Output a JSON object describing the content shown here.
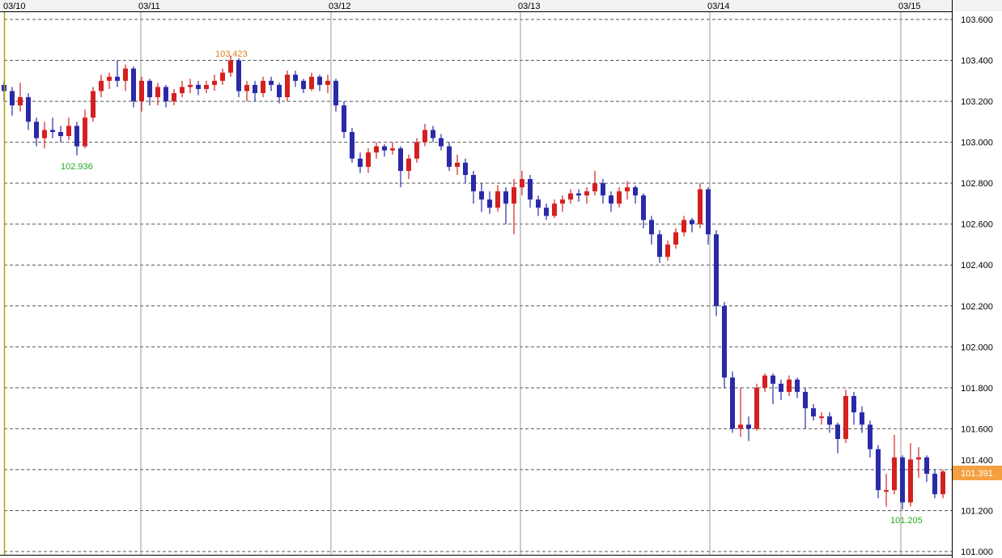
{
  "chart_data": {
    "type": "candlestick",
    "title": "",
    "x_tick_labels": [
      "03/10",
      "03/11",
      "03/12",
      "03/13",
      "03/14",
      "03/15"
    ],
    "y_tick_labels": [
      "103.600",
      "103.400",
      "103.200",
      "103.000",
      "102.800",
      "102.600",
      "102.400",
      "102.200",
      "102.000",
      "101.800",
      "101.600",
      "101.400",
      "101.200",
      "101.000"
    ],
    "ylim": [
      101.0,
      103.6
    ],
    "grid": true,
    "colors": {
      "up": "#d42020",
      "down": "#2a2aa8",
      "last_price_bg": "#f5a040",
      "high_label": "#e08020",
      "low_label": "#22aa22",
      "start_line": "#b8a000"
    },
    "last_price": "101.391",
    "annotations": [
      {
        "text": "103.423",
        "kind": "high"
      },
      {
        "text": "102.936",
        "kind": "low"
      },
      {
        "text": "101.205",
        "kind": "low"
      }
    ],
    "ohlc": [
      [
        103.28,
        103.3,
        103.2,
        103.25
      ],
      [
        103.25,
        103.27,
        103.13,
        103.18
      ],
      [
        103.18,
        103.29,
        103.15,
        103.22
      ],
      [
        103.22,
        103.24,
        103.06,
        103.1
      ],
      [
        103.1,
        103.12,
        102.98,
        103.02
      ],
      [
        103.02,
        103.1,
        102.97,
        103.06
      ],
      [
        103.06,
        103.12,
        103.02,
        103.05
      ],
      [
        103.05,
        103.08,
        103.0,
        103.03
      ],
      [
        103.03,
        103.12,
        103.01,
        103.08
      ],
      [
        103.08,
        103.1,
        102.936,
        102.98
      ],
      [
        102.98,
        103.16,
        102.97,
        103.12
      ],
      [
        103.12,
        103.27,
        103.1,
        103.25
      ],
      [
        103.25,
        103.33,
        103.22,
        103.3
      ],
      [
        103.3,
        103.34,
        103.26,
        103.32
      ],
      [
        103.32,
        103.4,
        103.27,
        103.3
      ],
      [
        103.3,
        103.38,
        103.25,
        103.36
      ],
      [
        103.36,
        103.37,
        103.17,
        103.2
      ],
      [
        103.2,
        103.32,
        103.15,
        103.3
      ],
      [
        103.3,
        103.31,
        103.18,
        103.22
      ],
      [
        103.22,
        103.29,
        103.18,
        103.27
      ],
      [
        103.27,
        103.28,
        103.17,
        103.2
      ],
      [
        103.2,
        103.26,
        103.18,
        103.24
      ],
      [
        103.24,
        103.3,
        103.22,
        103.27
      ],
      [
        103.27,
        103.31,
        103.24,
        103.28
      ],
      [
        103.28,
        103.3,
        103.23,
        103.26
      ],
      [
        103.26,
        103.3,
        103.24,
        103.28
      ],
      [
        103.28,
        103.33,
        103.25,
        103.3
      ],
      [
        103.3,
        103.36,
        103.28,
        103.34
      ],
      [
        103.34,
        103.423,
        103.32,
        103.4
      ],
      [
        103.4,
        103.41,
        103.22,
        103.25
      ],
      [
        103.25,
        103.3,
        103.2,
        103.28
      ],
      [
        103.28,
        103.3,
        103.2,
        103.24
      ],
      [
        103.24,
        103.32,
        103.22,
        103.3
      ],
      [
        103.3,
        103.32,
        103.25,
        103.28
      ],
      [
        103.28,
        103.29,
        103.19,
        103.22
      ],
      [
        103.22,
        103.35,
        103.2,
        103.33
      ],
      [
        103.33,
        103.35,
        103.27,
        103.3
      ],
      [
        103.3,
        103.31,
        103.24,
        103.26
      ],
      [
        103.26,
        103.34,
        103.25,
        103.32
      ],
      [
        103.32,
        103.33,
        103.25,
        103.28
      ],
      [
        103.28,
        103.33,
        103.24,
        103.3
      ],
      [
        103.3,
        103.31,
        103.15,
        103.18
      ],
      [
        103.18,
        103.2,
        103.02,
        103.05
      ],
      [
        103.05,
        103.07,
        102.9,
        102.92
      ],
      [
        102.92,
        102.95,
        102.85,
        102.88
      ],
      [
        102.88,
        102.97,
        102.85,
        102.95
      ],
      [
        102.95,
        103.0,
        102.92,
        102.98
      ],
      [
        102.98,
        102.99,
        102.93,
        102.96
      ],
      [
        102.96,
        103.0,
        102.94,
        102.97
      ],
      [
        102.97,
        102.98,
        102.78,
        102.86
      ],
      [
        102.86,
        102.94,
        102.82,
        102.92
      ],
      [
        102.92,
        103.02,
        102.9,
        103.0
      ],
      [
        103.0,
        103.09,
        102.98,
        103.06
      ],
      [
        103.06,
        103.08,
        103.0,
        103.02
      ],
      [
        103.02,
        103.04,
        102.96,
        102.98
      ],
      [
        102.98,
        103.0,
        102.86,
        102.88
      ],
      [
        102.88,
        102.94,
        102.84,
        102.9
      ],
      [
        102.9,
        102.92,
        102.8,
        102.84
      ],
      [
        102.84,
        102.86,
        102.7,
        102.76
      ],
      [
        102.76,
        102.8,
        102.66,
        102.72
      ],
      [
        102.72,
        102.76,
        102.65,
        102.68
      ],
      [
        102.68,
        102.79,
        102.66,
        102.76
      ],
      [
        102.76,
        102.78,
        102.6,
        102.7
      ],
      [
        102.7,
        102.82,
        102.55,
        102.78
      ],
      [
        102.78,
        102.86,
        102.74,
        102.82
      ],
      [
        102.82,
        102.84,
        102.68,
        102.72
      ],
      [
        102.72,
        102.74,
        102.64,
        102.68
      ],
      [
        102.68,
        102.7,
        102.62,
        102.64
      ],
      [
        102.64,
        102.72,
        102.63,
        102.7
      ],
      [
        102.7,
        102.74,
        102.66,
        102.72
      ],
      [
        102.72,
        102.77,
        102.7,
        102.75
      ],
      [
        102.75,
        102.77,
        102.71,
        102.74
      ],
      [
        102.74,
        102.78,
        102.7,
        102.76
      ],
      [
        102.76,
        102.86,
        102.74,
        102.8
      ],
      [
        102.8,
        102.82,
        102.7,
        102.74
      ],
      [
        102.74,
        102.76,
        102.66,
        102.7
      ],
      [
        102.7,
        102.78,
        102.68,
        102.76
      ],
      [
        102.76,
        102.81,
        102.72,
        102.78
      ],
      [
        102.78,
        102.79,
        102.7,
        102.74
      ],
      [
        102.74,
        102.75,
        102.58,
        102.62
      ],
      [
        102.62,
        102.64,
        102.5,
        102.55
      ],
      [
        102.55,
        102.57,
        102.41,
        102.44
      ],
      [
        102.44,
        102.52,
        102.42,
        102.5
      ],
      [
        102.5,
        102.58,
        102.48,
        102.56
      ],
      [
        102.56,
        102.64,
        102.54,
        102.62
      ],
      [
        102.62,
        102.63,
        102.56,
        102.6
      ],
      [
        102.6,
        102.8,
        102.58,
        102.77
      ],
      [
        102.77,
        102.78,
        102.5,
        102.55
      ],
      [
        102.55,
        102.57,
        102.15,
        102.2
      ],
      [
        102.2,
        102.22,
        101.8,
        101.85
      ],
      [
        101.85,
        101.88,
        101.58,
        101.6
      ],
      [
        101.6,
        101.8,
        101.56,
        101.62
      ],
      [
        101.62,
        101.66,
        101.54,
        101.6
      ],
      [
        101.6,
        101.82,
        101.59,
        101.8
      ],
      [
        101.8,
        101.87,
        101.78,
        101.86
      ],
      [
        101.86,
        101.87,
        101.72,
        101.82
      ],
      [
        101.82,
        101.84,
        101.74,
        101.78
      ],
      [
        101.78,
        101.86,
        101.76,
        101.84
      ],
      [
        101.84,
        101.85,
        101.75,
        101.78
      ],
      [
        101.78,
        101.8,
        101.6,
        101.7
      ],
      [
        101.7,
        101.72,
        101.64,
        101.66
      ],
      [
        101.66,
        101.68,
        101.62,
        101.66
      ],
      [
        101.66,
        101.68,
        101.58,
        101.62
      ],
      [
        101.62,
        101.63,
        101.48,
        101.55
      ],
      [
        101.55,
        101.79,
        101.53,
        101.76
      ],
      [
        101.76,
        101.78,
        101.62,
        101.68
      ],
      [
        101.68,
        101.71,
        101.58,
        101.62
      ],
      [
        101.62,
        101.64,
        101.46,
        101.5
      ],
      [
        101.5,
        101.52,
        101.26,
        101.3
      ],
      [
        101.3,
        101.38,
        101.22,
        101.3
      ],
      [
        101.3,
        101.57,
        101.28,
        101.46
      ],
      [
        101.46,
        101.47,
        101.205,
        101.24
      ],
      [
        101.24,
        101.53,
        101.22,
        101.45
      ],
      [
        101.45,
        101.51,
        101.36,
        101.46
      ],
      [
        101.46,
        101.47,
        101.34,
        101.38
      ],
      [
        101.38,
        101.4,
        101.26,
        101.28
      ],
      [
        101.28,
        101.4,
        101.26,
        101.391
      ]
    ]
  }
}
